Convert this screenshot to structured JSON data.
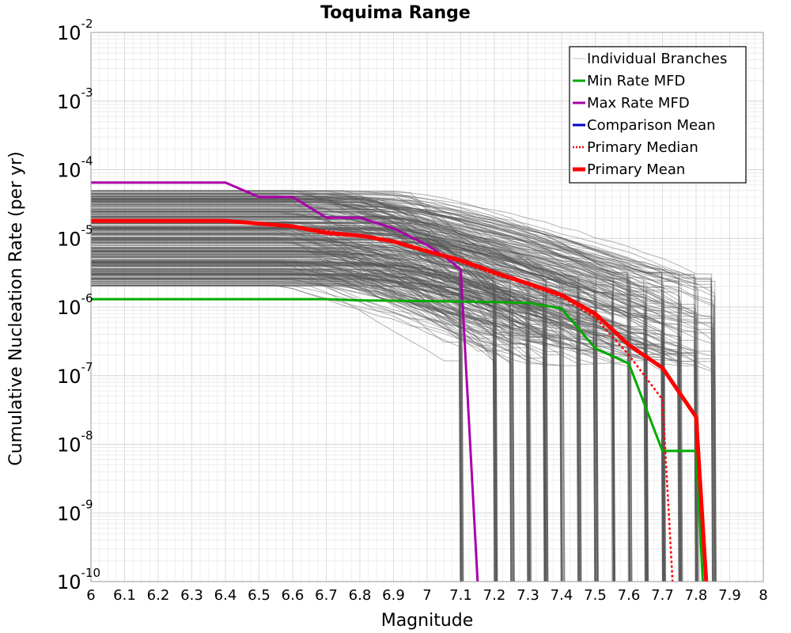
{
  "chart_data": {
    "type": "line",
    "title": "Toquima Range",
    "xlabel": "Magnitude",
    "ylabel": "Cumulative Nucleation Rate (per yr)",
    "xlim": [
      6,
      8
    ],
    "ylim_log10": [
      -10,
      -2
    ],
    "yscale": "log",
    "grid": true,
    "legend_position": "top-right",
    "x_ticks": [
      "6",
      "6.1",
      "6.2",
      "6.3",
      "6.4",
      "6.5",
      "6.6",
      "6.7",
      "6.8",
      "6.9",
      "7",
      "7.1",
      "7.2",
      "7.3",
      "7.4",
      "7.5",
      "7.6",
      "7.7",
      "7.8",
      "7.9",
      "8"
    ],
    "y_ticks": [
      {
        "base": "10",
        "exp": "-2",
        "value": 0.01
      },
      {
        "base": "10",
        "exp": "-3",
        "value": 0.001
      },
      {
        "base": "10",
        "exp": "-4",
        "value": 0.0001
      },
      {
        "base": "10",
        "exp": "-5",
        "value": 1e-05
      },
      {
        "base": "10",
        "exp": "-6",
        "value": 1e-06
      },
      {
        "base": "10",
        "exp": "-7",
        "value": 1e-07
      },
      {
        "base": "10",
        "exp": "-8",
        "value": 1e-08
      },
      {
        "base": "10",
        "exp": "-9",
        "value": 1e-09
      },
      {
        "base": "10",
        "exp": "-10",
        "value": 1e-10
      }
    ],
    "legend": [
      {
        "name": "Individual Branches",
        "color": "#c0c0c0",
        "style": "thin"
      },
      {
        "name": "Min Rate MFD",
        "color": "#00aa00",
        "style": "solid"
      },
      {
        "name": "Max Rate MFD",
        "color": "#aa00aa",
        "style": "solid"
      },
      {
        "name": "Comparison Mean",
        "color": "#0000cc",
        "style": "solid"
      },
      {
        "name": "Primary Median",
        "color": "#ff0000",
        "style": "dotted"
      },
      {
        "name": "Primary Mean",
        "color": "#ff0000",
        "style": "thick"
      }
    ],
    "branches": {
      "color": "#555555",
      "rate_range_at_M6": [
        2e-06,
        5e-05
      ],
      "truncation_magnitudes": [
        7.1,
        7.2,
        7.25,
        7.3,
        7.35,
        7.4,
        7.45,
        7.5,
        7.55,
        7.6,
        7.65,
        7.7,
        7.75,
        7.8,
        7.85
      ]
    },
    "series": [
      {
        "name": "Max Rate MFD",
        "color": "#aa00aa",
        "points": [
          [
            6,
            6.5e-05
          ],
          [
            6.4,
            6.5e-05
          ],
          [
            6.5,
            4e-05
          ],
          [
            6.6,
            4e-05
          ],
          [
            6.7,
            2e-05
          ],
          [
            6.8,
            2e-05
          ],
          [
            6.9,
            1.4e-05
          ],
          [
            7.0,
            8e-06
          ],
          [
            7.05,
            5.5e-06
          ],
          [
            7.1,
            3.5e-06
          ],
          [
            7.15,
            1e-10
          ]
        ]
      },
      {
        "name": "Min Rate MFD",
        "color": "#00aa00",
        "points": [
          [
            6,
            1.3e-06
          ],
          [
            6.7,
            1.3e-06
          ],
          [
            6.8,
            1.25e-06
          ],
          [
            7.0,
            1.22e-06
          ],
          [
            7.1,
            1.2e-06
          ],
          [
            7.2,
            1.18e-06
          ],
          [
            7.3,
            1.15e-06
          ],
          [
            7.4,
            9.5e-07
          ],
          [
            7.5,
            2.5e-07
          ],
          [
            7.6,
            1.5e-07
          ],
          [
            7.7,
            8e-09
          ],
          [
            7.8,
            8e-09
          ],
          [
            7.82,
            1e-10
          ]
        ]
      },
      {
        "name": "Primary Median",
        "color": "#ff0000",
        "points": [
          [
            6,
            1.8e-05
          ],
          [
            6.4,
            1.8e-05
          ],
          [
            6.6,
            1.5e-05
          ],
          [
            6.8,
            1.1e-05
          ],
          [
            6.9,
            9e-06
          ],
          [
            7.0,
            6.5e-06
          ],
          [
            7.1,
            4.5e-06
          ],
          [
            7.2,
            3e-06
          ],
          [
            7.3,
            2.1e-06
          ],
          [
            7.4,
            1.4e-06
          ],
          [
            7.5,
            7e-07
          ],
          [
            7.6,
            2e-07
          ],
          [
            7.7,
            4.5e-08
          ],
          [
            7.73,
            1e-10
          ]
        ]
      },
      {
        "name": "Primary Mean",
        "color": "#ff0000",
        "points": [
          [
            6,
            1.8e-05
          ],
          [
            6.4,
            1.8e-05
          ],
          [
            6.6,
            1.5e-05
          ],
          [
            6.7,
            1.2e-05
          ],
          [
            6.8,
            1.1e-05
          ],
          [
            6.9,
            9e-06
          ],
          [
            7.0,
            6.5e-06
          ],
          [
            7.1,
            4.8e-06
          ],
          [
            7.2,
            3.2e-06
          ],
          [
            7.3,
            2.2e-06
          ],
          [
            7.4,
            1.5e-06
          ],
          [
            7.5,
            8e-07
          ],
          [
            7.6,
            2.8e-07
          ],
          [
            7.7,
            1.3e-07
          ],
          [
            7.8,
            2.5e-08
          ],
          [
            7.83,
            1e-10
          ]
        ]
      }
    ]
  }
}
